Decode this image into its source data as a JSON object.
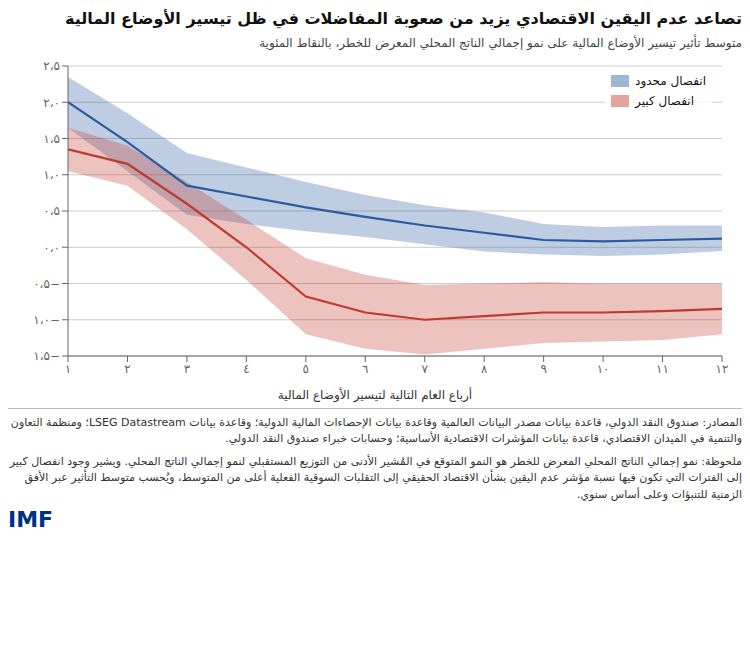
{
  "chart_data": {
    "type": "line",
    "title": "تصاعد عدم اليقين الاقتصادي يزيد من صعوبة المفاضلات في ظل تيسير الأوضاع المالية",
    "subtitle": "متوسط تأثير تيسير الأوضاع المالية على نمو إجمالي الناتج المحلي المعرض للخطر، بالنقاط المئوية",
    "xlabel": "أرباع العام التالية لتيسير الأوضاع المالية",
    "x": [
      1,
      2,
      3,
      4,
      5,
      6,
      7,
      8,
      9,
      10,
      11,
      12
    ],
    "xlim": [
      1,
      12
    ],
    "xticks": [
      {
        "value": 1,
        "label": "١"
      },
      {
        "value": 2,
        "label": "٢"
      },
      {
        "value": 3,
        "label": "٣"
      },
      {
        "value": 4,
        "label": "٤"
      },
      {
        "value": 5,
        "label": "٥"
      },
      {
        "value": 6,
        "label": "٦"
      },
      {
        "value": 7,
        "label": "٧"
      },
      {
        "value": 8,
        "label": "٨"
      },
      {
        "value": 9,
        "label": "٩"
      },
      {
        "value": 10,
        "label": "١۰"
      },
      {
        "value": 11,
        "label": "١١"
      },
      {
        "value": 12,
        "label": "١٢"
      }
    ],
    "ylim": [
      -1.5,
      2.5
    ],
    "yticks": [
      {
        "value": -1.5,
        "label": "١،۵−"
      },
      {
        "value": -1.0,
        "label": "١،۰−"
      },
      {
        "value": -0.5,
        "label": "۰،۵−"
      },
      {
        "value": 0.0,
        "label": "۰،۰"
      },
      {
        "value": 0.5,
        "label": "۰،۵"
      },
      {
        "value": 1.0,
        "label": "١،۰"
      },
      {
        "value": 1.5,
        "label": "١،۵"
      },
      {
        "value": 2.0,
        "label": "٢،۰"
      },
      {
        "value": 2.5,
        "label": "٢،۵"
      }
    ],
    "grid": true,
    "legend": "upper right",
    "series": [
      {
        "name": "انفصال محدود",
        "color": "#2a5aa0",
        "values": [
          2.0,
          1.45,
          0.85,
          0.7,
          0.55,
          0.42,
          0.3,
          0.2,
          0.1,
          0.08,
          0.1,
          0.12
        ],
        "upper": [
          2.35,
          1.85,
          1.3,
          1.1,
          0.9,
          0.72,
          0.58,
          0.48,
          0.32,
          0.28,
          0.3,
          0.3
        ],
        "lower": [
          1.65,
          1.05,
          0.45,
          0.32,
          0.22,
          0.14,
          0.04,
          -0.06,
          -0.1,
          -0.12,
          -0.1,
          -0.05
        ]
      },
      {
        "name": "انفصال كبير",
        "color": "#c0392b",
        "values": [
          1.35,
          1.15,
          0.6,
          0.0,
          -0.68,
          -0.9,
          -1.0,
          -0.95,
          -0.9,
          -0.9,
          -0.88,
          -0.85
        ],
        "upper": [
          1.65,
          1.4,
          0.9,
          0.38,
          -0.15,
          -0.38,
          -0.52,
          -0.5,
          -0.48,
          -0.5,
          -0.5,
          -0.5
        ],
        "lower": [
          1.05,
          0.85,
          0.25,
          -0.45,
          -1.2,
          -1.4,
          -1.48,
          -1.4,
          -1.32,
          -1.3,
          -1.28,
          -1.2
        ]
      }
    ],
    "annotations": [
      "المصادر: صندوق النقد الدولي، قاعدة بيانات مصدر البيانات العالمية وقاعدة بيانات الإحصاءات المالية الدولية؛ وقاعدة بيانات LSEG Datastream؛ ومنظمة التعاون والتنمية في الميدان الاقتصادي، قاعدة بيانات المؤشرات الاقتصادية الأساسية؛ وحسابات خبراء صندوق النقد الدولي.",
      "ملحوظة: نمو إجمالي الناتج المحلي المعرض للخطر هو النمو المتوقع في المُشير الأدنى من التوزيع المستقبلي لنمو إجمالي الناتج المحلي. ويشير وجود انفصال كبير إلى الفترات التي تكون فيها نسبة مؤشر عدم اليقين بشأن الاقتصاد الحقيقي إلى التقلبات السوقية الفعلية أعلى من المتوسط، ويُحسب متوسط التأثير عبر الأفق الزمنية للتنبؤات وعلى أساس سنوي.",
      "IMF"
    ]
  }
}
